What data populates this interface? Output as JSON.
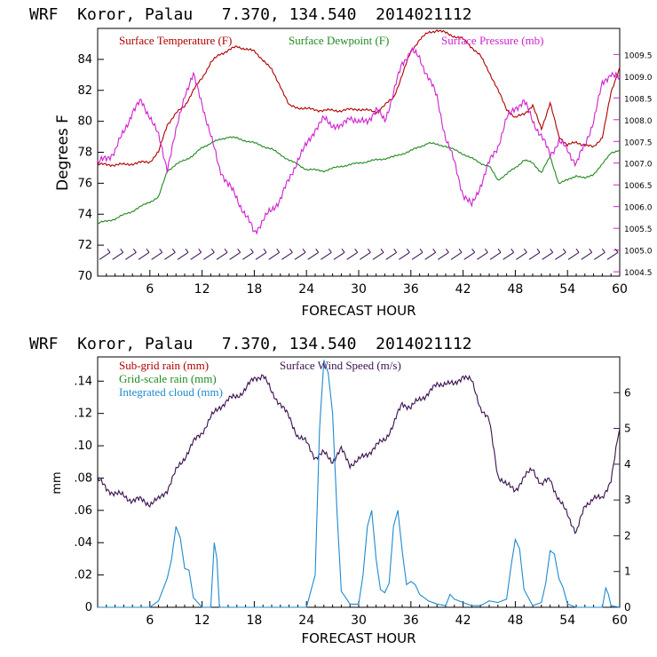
{
  "header_top": "WRF  Koror, Palau   7.370, 134.540  2014021112",
  "header_bottom": "WRF  Koror, Palau   7.370, 134.540  2014021112",
  "chart_data": [
    {
      "type": "line",
      "xlabel": "FORECAST HOUR",
      "ylabel": "Degrees F",
      "xlim": [
        0,
        60
      ],
      "ylim": [
        70,
        86
      ],
      "y2lim": [
        1004.4,
        1010.1
      ],
      "xticks": [
        "6",
        "12",
        "18",
        "24",
        "30",
        "36",
        "42",
        "48",
        "54",
        "60"
      ],
      "yticks": [
        "70",
        "72",
        "74",
        "76",
        "78",
        "80",
        "82",
        "84"
      ],
      "y2ticks": [
        "1004.5",
        "1005.0",
        "1005.5",
        "1006.0",
        "1006.5",
        "1007.0",
        "1007.5",
        "1008.0",
        "1008.5",
        "1009.0",
        "1009.5"
      ],
      "colors": {
        "temp": "#b00000",
        "dew": "#1f8a1f",
        "pres": "#d020d0",
        "wind": "#3a1050",
        "axis": "#000000"
      },
      "legend": [
        "Surface Temperature (F)",
        "Surface Dewpoint (F)",
        "Surface Pressure (mb)"
      ],
      "series": [
        {
          "name": "Surface Temperature (F)",
          "axis": "left",
          "x": [
            0,
            3,
            6,
            7,
            8,
            9,
            10,
            11,
            12,
            13,
            14,
            15,
            16,
            17,
            18,
            19,
            20,
            21,
            22,
            24,
            26,
            28,
            30,
            32,
            34,
            35,
            36,
            37,
            38,
            39,
            40,
            41,
            42,
            43,
            44,
            45,
            46,
            47,
            48,
            49,
            50,
            51,
            52,
            53,
            54,
            55,
            56,
            57,
            58,
            59,
            60
          ],
          "y": [
            77.2,
            77.2,
            77.4,
            78,
            79.8,
            80.5,
            81,
            82,
            82.8,
            83.8,
            84.3,
            84.6,
            84.8,
            84.7,
            84.5,
            84,
            83.3,
            82.3,
            81,
            80.8,
            80.7,
            80.7,
            80.8,
            80.6,
            81.5,
            83,
            84.5,
            85.3,
            85.7,
            85.9,
            85.7,
            85.5,
            85.3,
            84.8,
            84.2,
            83.2,
            82,
            80.8,
            80.2,
            80.5,
            81,
            79.5,
            81.2,
            79,
            78.5,
            78.6,
            78.5,
            78.3,
            79,
            81.8,
            83.5
          ]
        },
        {
          "name": "Surface Dewpoint (F)",
          "axis": "left",
          "x": [
            0,
            2,
            4,
            6,
            7,
            8,
            9,
            10,
            11,
            12,
            13,
            14,
            15,
            16,
            18,
            20,
            22,
            24,
            26,
            28,
            30,
            32,
            34,
            36,
            38,
            40,
            42,
            44,
            45,
            46,
            47,
            48,
            49,
            50,
            51,
            52,
            53,
            54,
            55,
            56,
            57,
            58,
            59,
            60
          ],
          "y": [
            73.4,
            73.7,
            74.2,
            74.8,
            75.1,
            76.8,
            77.2,
            77.5,
            77.8,
            78.3,
            78.6,
            78.8,
            79,
            78.9,
            78.6,
            78.2,
            77.5,
            76.9,
            76.8,
            77.1,
            77.3,
            77.5,
            77.7,
            78.1,
            78.6,
            78.4,
            77.9,
            77.3,
            77.1,
            76.2,
            76.6,
            77,
            77.5,
            77.3,
            76.7,
            77.7,
            76,
            76.2,
            76.5,
            76.3,
            76.6,
            77.2,
            78,
            78.1
          ]
        },
        {
          "name": "Surface Pressure (mb)",
          "axis": "right",
          "x": [
            0,
            1,
            2,
            3,
            4,
            5,
            6,
            7,
            8,
            9,
            10,
            11,
            12,
            13,
            14,
            15,
            16,
            17,
            18,
            19,
            20,
            21,
            22,
            23,
            24,
            25,
            26,
            27,
            28,
            29,
            30,
            31,
            32,
            33,
            34,
            35,
            36,
            37,
            38,
            39,
            40,
            41,
            42,
            43,
            44,
            45,
            46,
            47,
            48,
            49,
            50,
            51,
            52,
            53,
            54,
            55,
            56,
            57,
            58,
            59,
            60
          ],
          "y": [
            1007.0,
            1007.1,
            1007.3,
            1007.7,
            1008.2,
            1008.4,
            1008.1,
            1007.6,
            1006.9,
            1007.7,
            1008.6,
            1009.0,
            1008.4,
            1007.6,
            1006.9,
            1006.5,
            1006.2,
            1005.8,
            1005.4,
            1005.7,
            1005.9,
            1006.2,
            1006.6,
            1007.1,
            1007.4,
            1007.8,
            1008.0,
            1007.9,
            1007.8,
            1008.1,
            1007.9,
            1008.0,
            1008.2,
            1008.0,
            1008.6,
            1009.3,
            1009.6,
            1009.4,
            1009.0,
            1008.5,
            1007.6,
            1007.0,
            1006.3,
            1006.0,
            1006.5,
            1007.0,
            1007.4,
            1008.0,
            1008.3,
            1008.4,
            1008.0,
            1007.6,
            1007.2,
            1007.5,
            1007.3,
            1007.0,
            1007.4,
            1008.0,
            1008.8,
            1009.1,
            1008.9
          ]
        }
      ],
      "wind_barbs": {
        "count": 40,
        "y": 71.3
      }
    },
    {
      "type": "line",
      "xlabel": "FORECAST HOUR",
      "ylabel": "mm",
      "xlim": [
        0,
        60
      ],
      "ylim": [
        0,
        0.155
      ],
      "y2lim": [
        0,
        7
      ],
      "xticks": [
        "6",
        "12",
        "18",
        "24",
        "30",
        "36",
        "42",
        "48",
        "54",
        "60"
      ],
      "yticks": [
        "0",
        ".02",
        ".04",
        ".06",
        ".08",
        ".10",
        ".12",
        ".14"
      ],
      "y2ticks": [
        "0",
        "1",
        "2",
        "3",
        "4",
        "5",
        "6"
      ],
      "colors": {
        "subgrid": "#b00000",
        "gridrain": "#1f8a1f",
        "cloud": "#1e8ad0",
        "wind": "#3a1050"
      },
      "legend": [
        "Sub-grid rain (mm)",
        "Grid-scale rain (mm)",
        "Integrated cloud (mm)",
        "Surface Wind Speed (m/s)"
      ],
      "series": [
        {
          "name": "Surface Wind Speed (m/s)",
          "axis": "right",
          "x": [
            0,
            1,
            2,
            3,
            4,
            5,
            6,
            7,
            8,
            9,
            10,
            11,
            12,
            13,
            14,
            15,
            16,
            17,
            18,
            19,
            20,
            21,
            22,
            23,
            24,
            25,
            26,
            27,
            28,
            29,
            30,
            31,
            32,
            33,
            34,
            35,
            36,
            37,
            38,
            39,
            40,
            41,
            42,
            43,
            44,
            45,
            46,
            47,
            48,
            49,
            50,
            51,
            52,
            53,
            54,
            55,
            56,
            57,
            58,
            59,
            60
          ],
          "y": [
            3.6,
            3.3,
            3.2,
            3.1,
            3.0,
            3.0,
            2.9,
            3.0,
            3.3,
            3.8,
            4.2,
            4.6,
            4.9,
            5.3,
            5.6,
            5.8,
            5.9,
            6.1,
            6.4,
            6.5,
            6.0,
            5.7,
            5.3,
            4.8,
            4.6,
            4.2,
            4.3,
            4.1,
            4.4,
            4.0,
            4.1,
            4.3,
            4.5,
            4.7,
            5.1,
            5.7,
            5.6,
            5.8,
            6.0,
            6.2,
            6.3,
            6.2,
            6.5,
            6.3,
            5.6,
            5.2,
            3.7,
            3.4,
            3.3,
            3.6,
            3.9,
            3.4,
            3.6,
            3.0,
            2.6,
            2.1,
            2.8,
            3.1,
            3.0,
            3.6,
            5.0
          ]
        },
        {
          "name": "Integrated cloud (mm)",
          "axis": "left",
          "x": [
            0,
            6,
            7,
            8,
            8.5,
            9,
            9.5,
            10,
            10.5,
            11,
            12,
            13,
            13.4,
            13.7,
            14,
            15,
            24,
            25,
            25.5,
            26,
            26.5,
            27,
            27.5,
            28,
            29,
            30,
            30.5,
            31,
            31.5,
            32,
            32.5,
            33,
            33.5,
            34,
            34.5,
            35,
            35.5,
            36,
            36.5,
            37,
            38,
            39,
            40,
            40.5,
            41,
            42,
            43,
            44,
            45,
            46,
            47,
            47.5,
            48,
            48.5,
            49,
            50,
            51,
            51.5,
            52,
            52.5,
            53,
            53.5,
            54,
            55,
            58,
            58.4,
            58.7,
            59,
            60
          ],
          "y": [
            0,
            0,
            0.004,
            0.018,
            0.03,
            0.05,
            0.043,
            0.024,
            0.023,
            0.006,
            0,
            0,
            0.04,
            0.03,
            0,
            0,
            0,
            0.02,
            0.11,
            0.153,
            0.145,
            0.12,
            0.06,
            0.01,
            0.002,
            0.002,
            0.02,
            0.05,
            0.06,
            0.03,
            0.011,
            0.009,
            0.015,
            0.05,
            0.06,
            0.035,
            0.014,
            0.016,
            0.014,
            0.008,
            0.004,
            0.002,
            0.001,
            0.008,
            0.005,
            0.003,
            0.001,
            0.001,
            0.004,
            0.003,
            0.005,
            0.025,
            0.042,
            0.036,
            0.011,
            0.001,
            0.003,
            0.015,
            0.035,
            0.033,
            0.018,
            0.012,
            0.002,
            0,
            0,
            0.012,
            0.008,
            0.001,
            0
          ]
        }
      ]
    }
  ]
}
